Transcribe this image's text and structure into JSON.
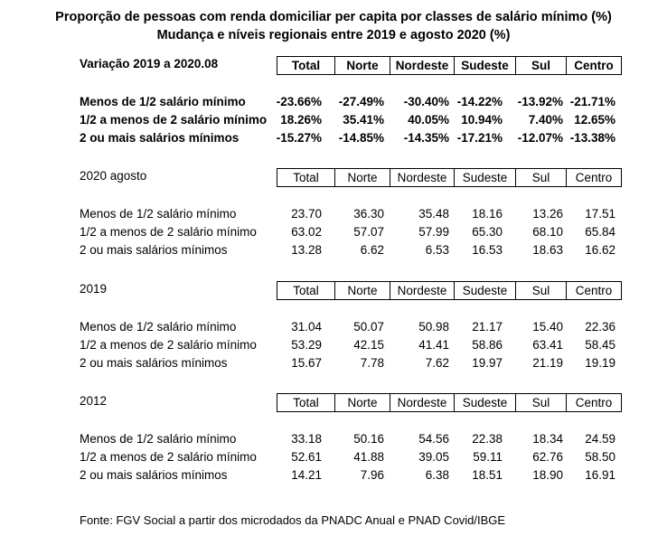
{
  "title_line1": "Proporção de pessoas com renda domiciliar per capita por classes de salário mínimo (%)",
  "title_line2": "Mudança e níveis regionais entre 2019 e agosto 2020 (%)",
  "columns": [
    "Total",
    "Norte",
    "Nordeste",
    "Sudeste",
    "Sul",
    "Centro"
  ],
  "sections": [
    {
      "label": "Variação 2019 a 2020.08",
      "bold": true,
      "rows": [
        {
          "label": "Menos de 1/2 salário mínimo",
          "values": [
            "-23.66%",
            "-27.49%",
            "-30.40%",
            "-14.22%",
            "-13.92%",
            "-21.71%"
          ]
        },
        {
          "label": "1/2 a menos de 2 salário mínimo",
          "values": [
            "18.26%",
            "35.41%",
            "40.05%",
            "10.94%",
            "7.40%",
            "12.65%"
          ]
        },
        {
          "label": "2 ou mais salários mínimos",
          "values": [
            "-15.27%",
            "-14.85%",
            "-14.35%",
            "-17.21%",
            "-12.07%",
            "-13.38%"
          ]
        }
      ]
    },
    {
      "label": "2020 agosto",
      "bold": false,
      "rows": [
        {
          "label": "Menos de 1/2 salário mínimo",
          "values": [
            "23.70",
            "36.30",
            "35.48",
            "18.16",
            "13.26",
            "17.51"
          ]
        },
        {
          "label": "1/2 a menos de 2 salário mínimo",
          "values": [
            "63.02",
            "57.07",
            "57.99",
            "65.30",
            "68.10",
            "65.84"
          ]
        },
        {
          "label": "2 ou mais salários mínimos",
          "values": [
            "13.28",
            "6.62",
            "6.53",
            "16.53",
            "18.63",
            "16.62"
          ]
        }
      ]
    },
    {
      "label": "2019",
      "bold": false,
      "rows": [
        {
          "label": "Menos de 1/2 salário mínimo",
          "values": [
            "31.04",
            "50.07",
            "50.98",
            "21.17",
            "15.40",
            "22.36"
          ]
        },
        {
          "label": "1/2 a menos de 2 salário mínimo",
          "values": [
            "53.29",
            "42.15",
            "41.41",
            "58.86",
            "63.41",
            "58.45"
          ]
        },
        {
          "label": "2 ou mais salários mínimos",
          "values": [
            "15.67",
            "7.78",
            "7.62",
            "19.97",
            "21.19",
            "19.19"
          ]
        }
      ]
    },
    {
      "label": "2012",
      "bold": false,
      "rows": [
        {
          "label": "Menos de 1/2 salário mínimo",
          "values": [
            "33.18",
            "50.16",
            "54.56",
            "22.38",
            "18.34",
            "24.59"
          ]
        },
        {
          "label": "1/2 a menos de 2 salário mínimo",
          "values": [
            "52.61",
            "41.88",
            "39.05",
            "59.11",
            "62.76",
            "58.50"
          ]
        },
        {
          "label": "2 ou mais salários mínimos",
          "values": [
            "14.21",
            "7.96",
            "6.38",
            "18.51",
            "18.90",
            "16.91"
          ]
        }
      ]
    }
  ],
  "footer": "Fonte: FGV Social a partir dos microdados da PNADC Anual e PNAD Covid/IBGE"
}
